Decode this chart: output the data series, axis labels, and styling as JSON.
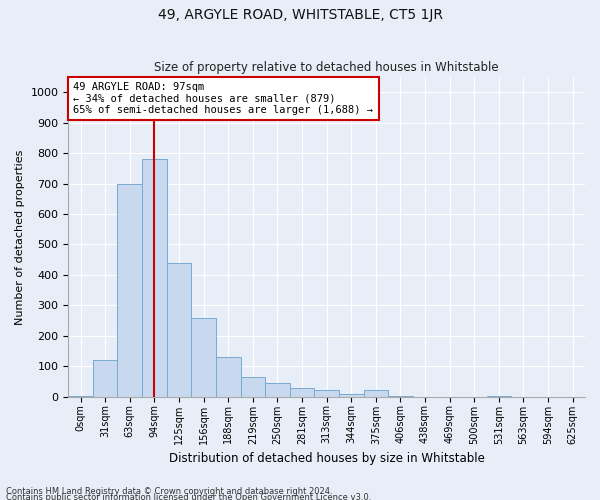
{
  "title1": "49, ARGYLE ROAD, WHITSTABLE, CT5 1JR",
  "title2": "Size of property relative to detached houses in Whitstable",
  "xlabel": "Distribution of detached houses by size in Whitstable",
  "ylabel": "Number of detached properties",
  "footer1": "Contains HM Land Registry data © Crown copyright and database right 2024.",
  "footer2": "Contains public sector information licensed under the Open Government Licence v3.0.",
  "bin_labels": [
    "0sqm",
    "31sqm",
    "63sqm",
    "94sqm",
    "125sqm",
    "156sqm",
    "188sqm",
    "219sqm",
    "250sqm",
    "281sqm",
    "313sqm",
    "344sqm",
    "375sqm",
    "406sqm",
    "438sqm",
    "469sqm",
    "500sqm",
    "531sqm",
    "563sqm",
    "594sqm",
    "625sqm"
  ],
  "bar_values": [
    3,
    120,
    700,
    780,
    440,
    260,
    130,
    65,
    45,
    30,
    22,
    10,
    22,
    3,
    0,
    0,
    0,
    3,
    0,
    0,
    0
  ],
  "bar_color": "#c8d8ee",
  "bar_edgecolor": "#7aaad0",
  "property_line_x": 3.0,
  "property_line_color": "#cc0000",
  "ylim": [
    0,
    1050
  ],
  "yticks": [
    0,
    100,
    200,
    300,
    400,
    500,
    600,
    700,
    800,
    900,
    1000
  ],
  "annotation_text": "49 ARGYLE ROAD: 97sqm\n← 34% of detached houses are smaller (879)\n65% of semi-detached houses are larger (1,688) →",
  "annotation_box_color": "#ffffff",
  "annotation_border_color": "#cc0000",
  "background_color": "#e8eef8",
  "grid_color": "#ffffff",
  "spine_color": "#aaaaaa"
}
